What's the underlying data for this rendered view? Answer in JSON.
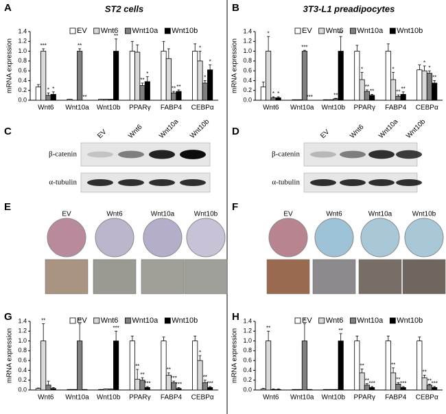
{
  "panel_labels": [
    "A",
    "B",
    "C",
    "D",
    "E",
    "F",
    "G",
    "H"
  ],
  "chart_data": [
    {
      "type": "bar",
      "title": "ST2 cells",
      "ylabel": "mRNA expression",
      "categories": [
        "Wnt6",
        "Wnt10a",
        "Wnt10b",
        "PPARγ",
        "FABP4",
        "CEBPα"
      ],
      "ylim": [
        0,
        1.4
      ],
      "yticks": [
        {
          "value": 0,
          "label": "0.0"
        },
        0.2,
        0.4,
        0.6,
        0.8,
        {
          "value": 1,
          "label": "1.0"
        },
        1.2,
        1.4
      ],
      "series": [
        {
          "name": "EV",
          "color": "#ffffff",
          "values": [
            0.27,
            0.02,
            0.02,
            1.0,
            1.0,
            1.0
          ],
          "errors": [
            0.05,
            0,
            0,
            0.2,
            0.2,
            0.15
          ],
          "stars": [
            null,
            null,
            null,
            null,
            null,
            null
          ]
        },
        {
          "name": "Wnt6",
          "color": "#d9d9d9",
          "values": [
            1.0,
            0.0,
            0.02,
            0.98,
            0.85,
            0.8
          ],
          "errors": [
            0.05,
            0,
            0,
            0.15,
            0.2,
            0.2
          ],
          "stars": [
            "***",
            null,
            null,
            null,
            null,
            "*"
          ]
        },
        {
          "name": "Wnt10a",
          "color": "#808080",
          "values": [
            0.1,
            1.0,
            0.02,
            0.3,
            0.15,
            0.35
          ],
          "errors": [
            0.05,
            0.05,
            0,
            0.05,
            0.03,
            0.05
          ],
          "stars": [
            "*",
            "**",
            null,
            "**",
            "**",
            "*"
          ]
        },
        {
          "name": "Wnt10b",
          "color": "#000000",
          "values": [
            0.12,
            0.0,
            1.0,
            0.38,
            0.18,
            0.62
          ],
          "errors": [
            0.05,
            0,
            0.25,
            0.1,
            0.03,
            0.1
          ],
          "stars": [
            "*",
            "**",
            "**",
            "*",
            "**",
            "*"
          ]
        }
      ]
    },
    {
      "type": "bar",
      "title": "3T3-L1 preadipocytes",
      "ylabel": "mRNA expression",
      "categories": [
        "Wnt6",
        "Wnt10a",
        "Wnt10b",
        "PPARγ",
        "FABP4",
        "CEBPα"
      ],
      "ylim": [
        0,
        1.4
      ],
      "yticks": [
        {
          "value": 0,
          "label": "0.0"
        },
        0.2,
        0.4,
        0.6,
        0.8,
        {
          "value": 1,
          "label": "1.0"
        },
        1.2,
        1.4
      ],
      "series": [
        {
          "name": "EV",
          "color": "#ffffff",
          "values": [
            0.27,
            0.01,
            0.01,
            1.0,
            1.0,
            0.62
          ],
          "errors": [
            0.1,
            0,
            0,
            0.12,
            0.15,
            0.1
          ],
          "stars": [
            null,
            null,
            null,
            null,
            null,
            null
          ]
        },
        {
          "name": "Wnt6",
          "color": "#d9d9d9",
          "values": [
            1.0,
            0.01,
            0.01,
            0.42,
            0.42,
            0.6
          ],
          "errors": [
            0.3,
            0,
            0,
            0.15,
            0.15,
            0.1
          ],
          "stars": [
            "*",
            null,
            null,
            "*",
            "*",
            "*"
          ]
        },
        {
          "name": "Wnt10a",
          "color": "#808080",
          "values": [
            0.05,
            1.0,
            0.03,
            0.18,
            0.08,
            0.55
          ],
          "errors": [
            0.02,
            0.02,
            0.01,
            0.03,
            0.03,
            0.05
          ],
          "stars": [
            "*",
            "***",
            "**",
            "**",
            "**",
            "*"
          ]
        },
        {
          "name": "Wnt10b",
          "color": "#000000",
          "values": [
            0.05,
            0.0,
            1.0,
            0.1,
            0.12,
            0.35
          ],
          "errors": [
            0.02,
            0,
            0.3,
            0.02,
            0.05,
            0.05
          ],
          "stars": [
            "*",
            "***",
            "**",
            "**",
            "**",
            "**"
          ]
        }
      ]
    },
    {
      "type": "bar",
      "ylabel": "mRNA expression",
      "categories": [
        "Wnt6",
        "Wnt10a",
        "Wnt10b",
        "PPARγ",
        "FABP4",
        "CEBPα"
      ],
      "ylim": [
        0,
        1.4
      ],
      "yticks": [
        {
          "value": 0,
          "label": "0.0"
        },
        0.2,
        0.4,
        0.6,
        0.8,
        {
          "value": 1,
          "label": "1.0"
        },
        1.2,
        1.4
      ],
      "series": [
        {
          "name": "EV",
          "color": "#ffffff",
          "values": [
            0.03,
            0.01,
            0.01,
            1.0,
            1.0,
            1.0
          ],
          "errors": [
            0.01,
            0,
            0,
            0.1,
            0.08,
            0.1
          ],
          "stars": [
            null,
            null,
            null,
            null,
            null,
            null
          ]
        },
        {
          "name": "Wnt6",
          "color": "#d9d9d9",
          "values": [
            1.0,
            0.01,
            0.02,
            0.22,
            0.3,
            0.6
          ],
          "errors": [
            0.35,
            0,
            0,
            0.2,
            0.05,
            0.1
          ],
          "stars": [
            "**",
            null,
            null,
            "**",
            "**",
            "*"
          ]
        },
        {
          "name": "Wnt10a",
          "color": "#808080",
          "values": [
            0.1,
            1.0,
            0.02,
            0.2,
            0.15,
            0.15
          ],
          "errors": [
            0.08,
            0.35,
            0,
            0.05,
            0.03,
            0.05
          ],
          "stars": [
            null,
            "**",
            null,
            "**",
            "***",
            "**"
          ]
        },
        {
          "name": "Wnt10b",
          "color": "#000000",
          "values": [
            0.03,
            0.01,
            1.0,
            0.05,
            0.03,
            0.05
          ],
          "errors": [
            0.02,
            0,
            0.2,
            0.02,
            0.02,
            0.02
          ],
          "stars": [
            null,
            null,
            "***",
            "***",
            "***",
            "***"
          ]
        }
      ]
    },
    {
      "type": "bar",
      "ylabel": "mRNA expression",
      "categories": [
        "Wnt6",
        "Wnt10a",
        "Wnt10b",
        "PPARγ",
        "FABP4",
        "CEBPα"
      ],
      "ylim": [
        0,
        1.4
      ],
      "yticks": [
        {
          "value": 0,
          "label": "0.0"
        },
        0.2,
        0.4,
        0.6,
        0.8,
        {
          "value": 1,
          "label": "1.0"
        },
        1.2,
        1.4
      ],
      "series": [
        {
          "name": "EV",
          "color": "#ffffff",
          "values": [
            0.02,
            0.01,
            0.01,
            1.0,
            1.0,
            1.0
          ],
          "errors": [
            0.01,
            0,
            0,
            0.1,
            0.1,
            0.08
          ],
          "stars": [
            null,
            null,
            null,
            null,
            null,
            null
          ]
        },
        {
          "name": "Wnt6",
          "color": "#d9d9d9",
          "values": [
            1.0,
            0.01,
            0.01,
            0.35,
            0.35,
            0.25
          ],
          "errors": [
            0.2,
            0,
            0,
            0.08,
            0.1,
            0.05
          ],
          "stars": [
            "**",
            null,
            null,
            "**",
            "**",
            "**"
          ]
        },
        {
          "name": "Wnt10a",
          "color": "#808080",
          "values": [
            0.01,
            1.0,
            0.01,
            0.1,
            0.12,
            0.1
          ],
          "errors": [
            0.01,
            0.35,
            0,
            0.03,
            0.03,
            0.02
          ],
          "stars": [
            null,
            "*",
            null,
            "**",
            "**",
            "**"
          ]
        },
        {
          "name": "Wnt10b",
          "color": "#000000",
          "values": [
            0.01,
            0.01,
            1.0,
            0.05,
            0.05,
            0.05
          ],
          "errors": [
            0.01,
            0,
            0.15,
            0.02,
            0.02,
            0.02
          ],
          "stars": [
            null,
            null,
            "**",
            "***",
            "***",
            "***"
          ]
        }
      ]
    }
  ],
  "blots": [
    {
      "lanes": [
        "EV",
        "Wnt6",
        "Wnt10a",
        "Wnt10b"
      ],
      "rows": [
        "β-catenin",
        "α-tubulin"
      ]
    },
    {
      "lanes": [
        "EV",
        "Wnt6",
        "Wnt10a",
        "Wnt10b"
      ],
      "rows": [
        "β-catenin",
        "α-tubulin"
      ]
    }
  ],
  "stains": [
    {
      "groups": [
        "EV",
        "Wnt6",
        "Wnt10a",
        "Wnt10b"
      ]
    },
    {
      "groups": [
        "EV",
        "Wnt6",
        "Wnt10a",
        "Wnt10b"
      ]
    }
  ]
}
